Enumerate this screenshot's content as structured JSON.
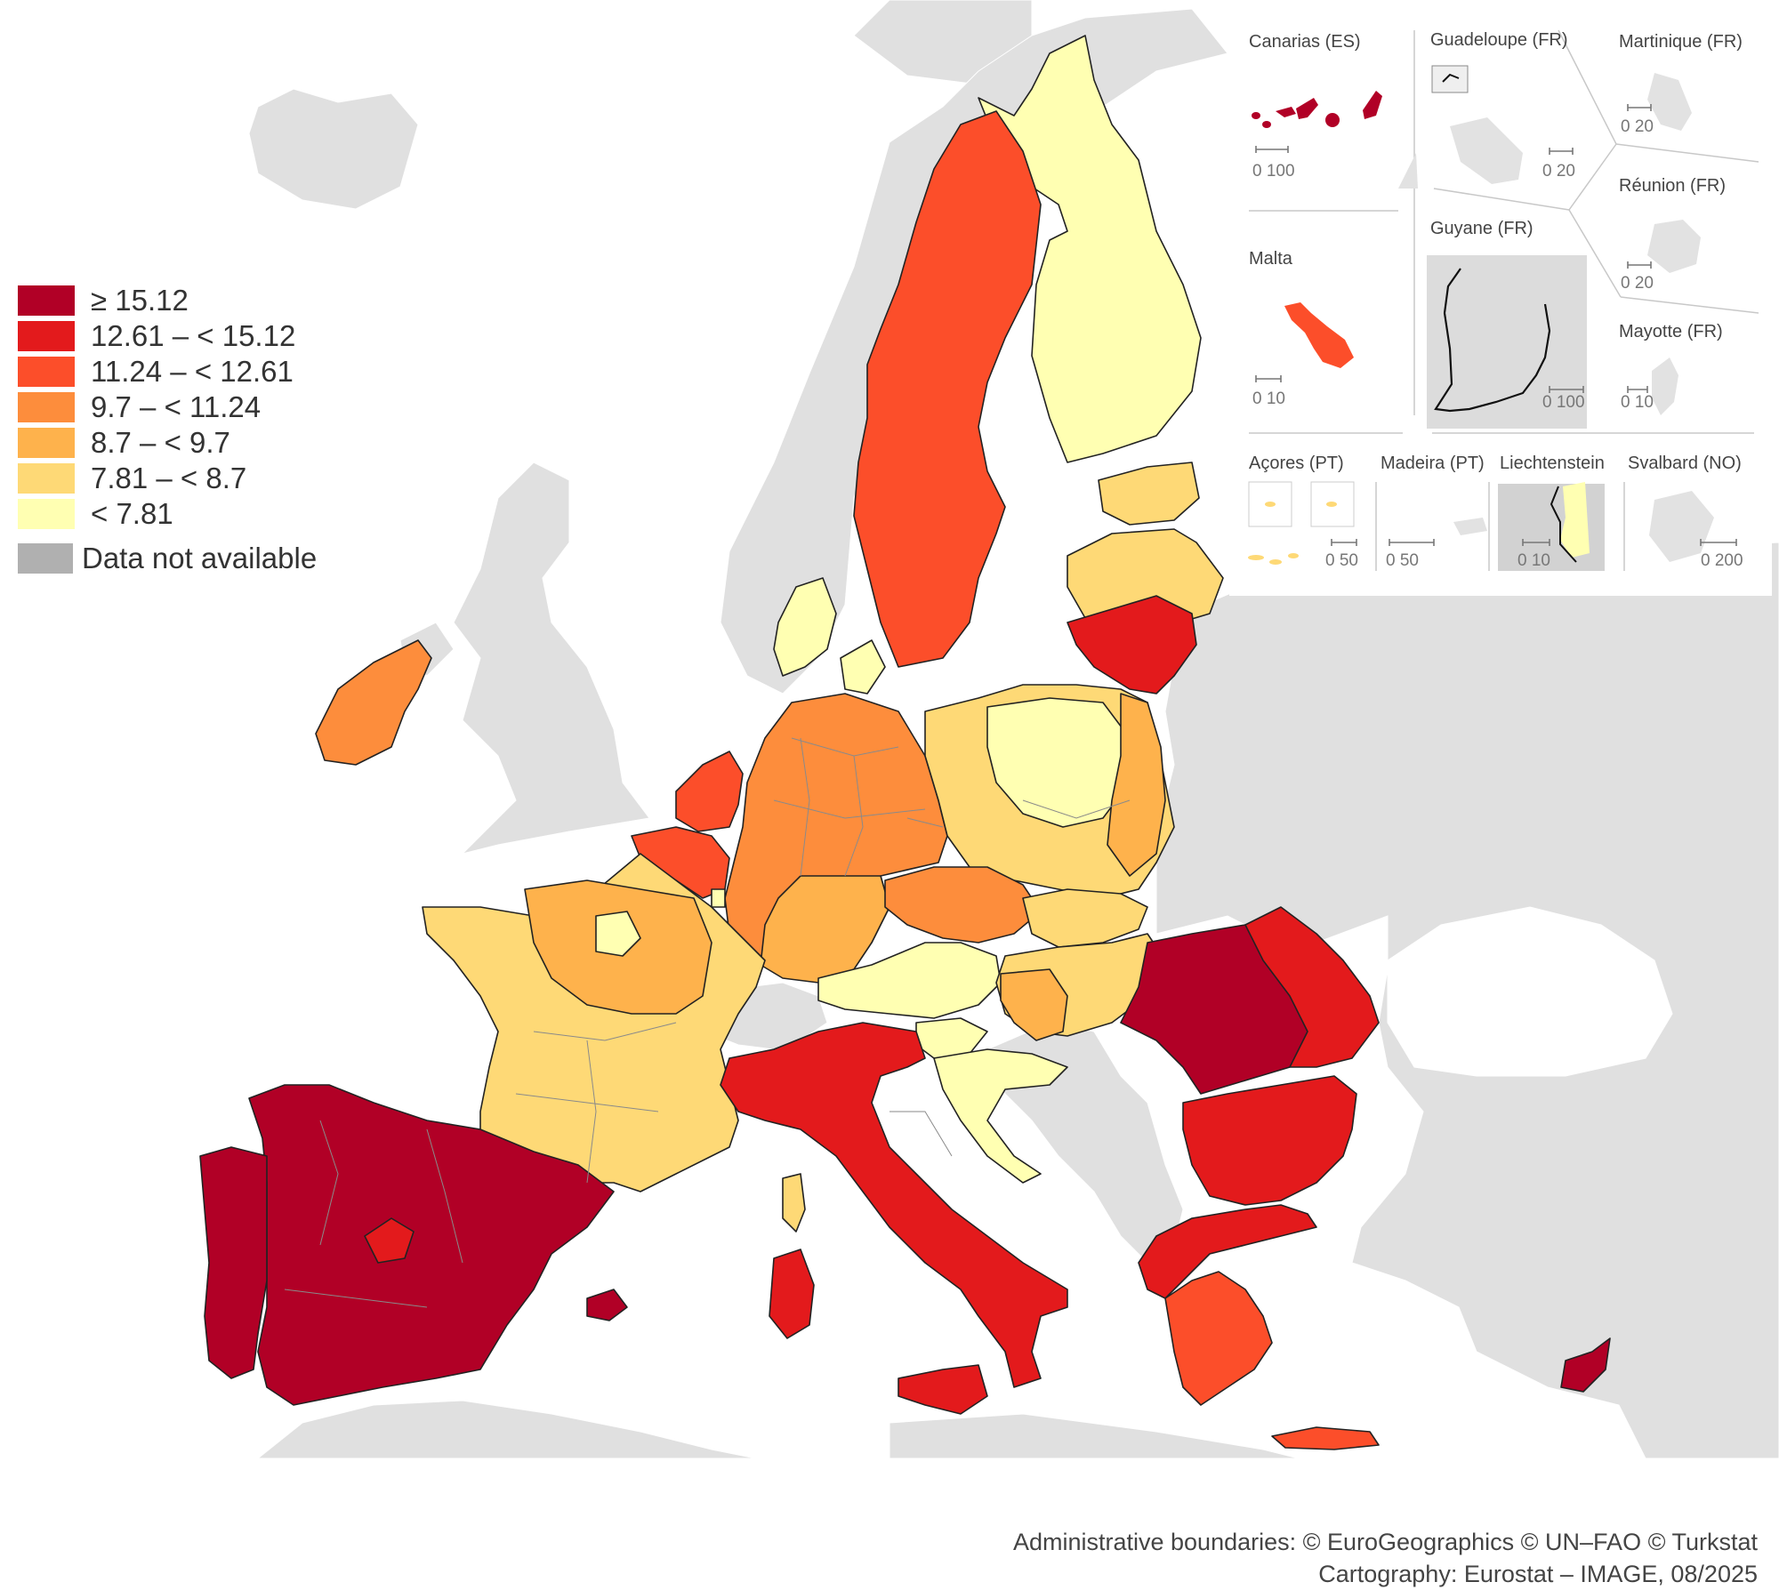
{
  "legend": {
    "classes": [
      {
        "label": "≥ 15.12",
        "color": "#b10026"
      },
      {
        "label": "12.61 – < 15.12",
        "color": "#e31a1c"
      },
      {
        "label": "11.24 – < 12.61",
        "color": "#fc4e2a"
      },
      {
        "label": "9.7 – < 11.24",
        "color": "#fd8d3c"
      },
      {
        "label": "8.7 – < 9.7",
        "color": "#feb24c"
      },
      {
        "label": "7.81 – < 8.7",
        "color": "#fed976"
      },
      {
        "label": "< 7.81",
        "color": "#ffffb2"
      }
    ],
    "na": {
      "label": "Data not available",
      "color": "#b0b0b0"
    }
  },
  "insets": {
    "canarias": {
      "label": "Canarias (ES)",
      "scale": "0  100"
    },
    "guadeloupe": {
      "label": "Guadeloupe (FR)",
      "scale": "0  20"
    },
    "martinique": {
      "label": "Martinique (FR)",
      "scale": "0  20"
    },
    "reunion": {
      "label": "Réunion (FR)",
      "scale": "0  20"
    },
    "guyane": {
      "label": "Guyane (FR)",
      "scale": "0  100"
    },
    "malta": {
      "label": "Malta",
      "scale": "0  10"
    },
    "mayotte": {
      "label": "Mayotte (FR)",
      "scale": "0 10"
    },
    "acores": {
      "label": "Açores (PT)",
      "scale": "0  50"
    },
    "madeira": {
      "label": "Madeira (PT)",
      "scale": "0     50"
    },
    "liechtenstein": {
      "label": "Liechtenstein",
      "scale": "0  10"
    },
    "svalbard": {
      "label": "Svalbard (NO)",
      "scale": "0    200"
    }
  },
  "credits": {
    "line1": "Administrative boundaries: © EuroGeographics © UN–FAO © Turkstat",
    "line2": "Cartography: Eurostat – IMAGE, 08/2025"
  },
  "colors": {
    "sea": "#ffffff",
    "non_eu_land": "#e0e0e0",
    "border": "#222222",
    "inner_border": "#8a8a8a"
  }
}
